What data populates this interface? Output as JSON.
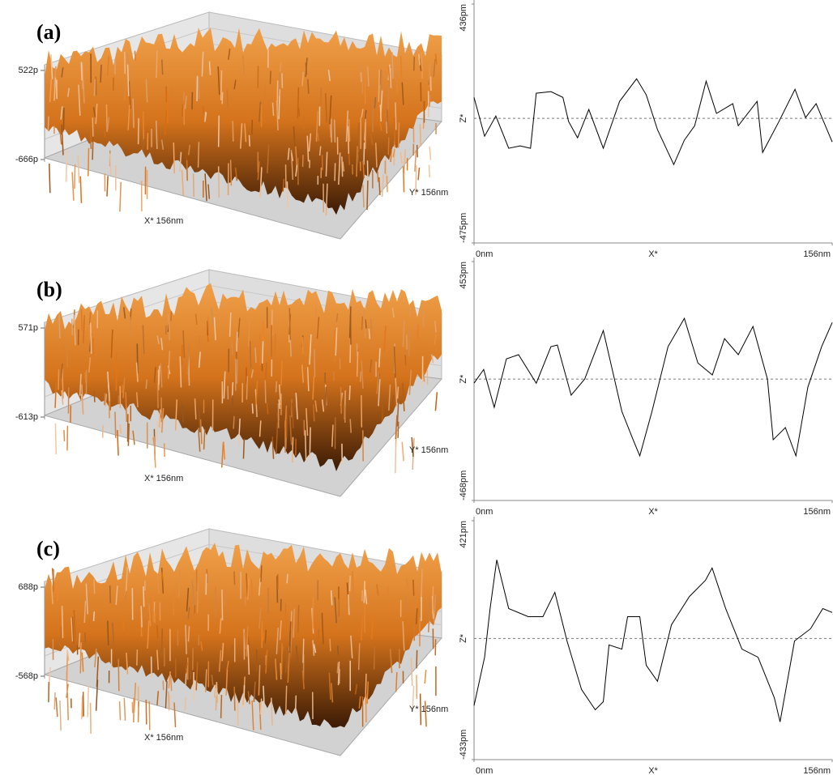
{
  "chart_data": [
    {
      "type": "surface",
      "label": "(a)",
      "zlim": [
        -666,
        522
      ],
      "zticks": [
        {
          "value": -666,
          "label": "-666p"
        },
        {
          "value": 522,
          "label": "522p"
        }
      ],
      "xlabel": "X* 156nm",
      "ylabel": "Y* 156nm"
    },
    {
      "type": "line",
      "xlabel": "X*",
      "ylabel": "Z*",
      "color": "#000000",
      "zero_line": true,
      "xlim": [
        0,
        156
      ],
      "xticks": [
        {
          "value": 0,
          "label": "0nm"
        },
        {
          "value": 156,
          "label": "156nm"
        }
      ],
      "ylim": [
        -475,
        436
      ],
      "yticks": [
        {
          "value": -475,
          "label": "-475pm"
        },
        {
          "value": 436,
          "label": "436pm"
        }
      ],
      "x": [
        0,
        4.6,
        9.5,
        15.1,
        20.1,
        24.6,
        27.1,
        33.5,
        38.7,
        41.2,
        45.1,
        50.0,
        56.3,
        63.4,
        70.8,
        75.0,
        79.9,
        87.0,
        91.6,
        96.1,
        101.1,
        105.6,
        112.7,
        115.1,
        123.3,
        125.7,
        132.8,
        139.8,
        144.4,
        149.0,
        156
      ],
      "series": [
        {
          "values": [
            80,
            -68,
            9,
            -114,
            -105,
            -114,
            96,
            102,
            80,
            -12,
            -74,
            34,
            -114,
            65,
            151,
            90,
            -43,
            -176,
            -83,
            -28,
            142,
            19,
            56,
            -28,
            65,
            -130,
            -12,
            111,
            3,
            56,
            -90
          ]
        }
      ]
    },
    {
      "type": "surface",
      "label": "(b)",
      "zlim": [
        -613,
        571
      ],
      "zticks": [
        {
          "value": -613,
          "label": "-613p"
        },
        {
          "value": 571,
          "label": "571p"
        }
      ],
      "xlabel": "X* 156nm",
      "ylabel": "Y* 156nm"
    },
    {
      "type": "line",
      "xlabel": "X*",
      "ylabel": "Z*",
      "color": "#000000",
      "zero_line": true,
      "xlim": [
        0,
        156
      ],
      "xticks": [
        {
          "value": 0,
          "label": "0nm"
        },
        {
          "value": 156,
          "label": "156nm"
        }
      ],
      "ylim": [
        -468,
        453
      ],
      "yticks": [
        {
          "value": -468,
          "label": "-468pm"
        },
        {
          "value": 453,
          "label": "453pm"
        }
      ],
      "x": [
        0,
        4.2,
        8.8,
        14.1,
        19.4,
        27.1,
        33.5,
        36.3,
        42.3,
        48.2,
        56.3,
        64.4,
        69.3,
        72.2,
        77.5,
        84.5,
        91.6,
        97.5,
        103.8,
        109.1,
        115.1,
        121.5,
        127.8,
        130.3,
        135.6,
        140.2,
        145.4,
        151.4,
        156
      ],
      "series": [
        {
          "values": [
            -16,
            37,
            -109,
            78,
            94,
            -16,
            125,
            131,
            -62,
            0,
            187,
            -125,
            -234,
            -296,
            -125,
            125,
            234,
            62,
            16,
            156,
            94,
            203,
            0,
            -234,
            -187,
            -296,
            -31,
            125,
            218
          ]
        }
      ]
    },
    {
      "type": "surface",
      "label": "(c)",
      "zlim": [
        -568,
        688
      ],
      "zticks": [
        {
          "value": -568,
          "label": "-568p"
        },
        {
          "value": 688,
          "label": "688p"
        }
      ],
      "xlabel": "X* 156nm",
      "ylabel": "Y* 156nm"
    },
    {
      "type": "line",
      "xlabel": "X*",
      "ylabel": "Z*",
      "color": "#000000",
      "zero_line": true,
      "xlim": [
        0,
        156
      ],
      "xticks": [
        {
          "value": 0,
          "label": "0nm"
        },
        {
          "value": 156,
          "label": "156nm"
        }
      ],
      "ylim": [
        -433,
        421
      ],
      "yticks": [
        {
          "value": -433,
          "label": "-433pm"
        },
        {
          "value": 421,
          "label": "421pm"
        }
      ],
      "x": [
        0,
        4.6,
        7.0,
        9.9,
        15.1,
        23.6,
        30.0,
        35.2,
        40.5,
        46.8,
        52.8,
        56.3,
        58.8,
        64.4,
        66.9,
        72.2,
        75.0,
        79.9,
        86.0,
        93.8,
        100.8,
        103.7,
        109.6,
        116.7,
        123.7,
        130.8,
        133.3,
        139.6,
        146.6,
        151.9,
        156
      ],
      "series": [
        {
          "values": [
            -240,
            -67,
            107,
            281,
            107,
            78,
            78,
            165,
            -9,
            -182,
            -255,
            -226,
            -23,
            -38,
            78,
            78,
            -96,
            -153,
            49,
            150,
            208,
            252,
            107,
            -38,
            -67,
            -212,
            -298,
            -9,
            35,
            107,
            93
          ]
        }
      ]
    }
  ]
}
